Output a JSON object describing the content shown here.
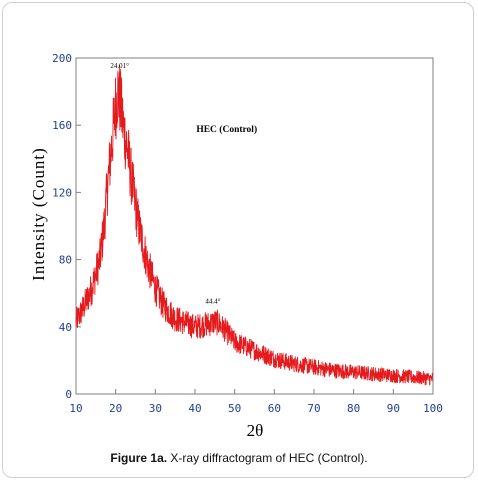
{
  "caption": {
    "label": "Figure 1a.",
    "text": " X-ray diffractogram of HEC (Control)."
  },
  "chart_data": {
    "type": "line",
    "xlabel": "2θ",
    "ylabel": "Intensity (Count)",
    "xlim": [
      10,
      100
    ],
    "ylim": [
      0,
      200
    ],
    "xticks": [
      10,
      20,
      30,
      40,
      50,
      60,
      70,
      80,
      90,
      100
    ],
    "yticks": [
      0,
      40,
      80,
      120,
      160,
      200
    ],
    "grid": false,
    "line_color": "#e41a1c",
    "annotations": [
      {
        "text": "24.01°",
        "x": 21,
        "y": 194
      },
      {
        "text": "44.4°",
        "x": 44.5,
        "y": 54
      },
      {
        "text": "HEC (Control)",
        "x": 48,
        "y": 156
      }
    ],
    "series": [
      {
        "x": [
          10,
          12,
          14,
          16,
          17,
          18,
          19,
          20,
          20.5,
          21,
          21.5,
          22,
          23,
          24,
          25,
          26,
          28,
          30,
          32,
          35,
          38,
          40,
          42,
          44,
          45,
          46,
          48,
          50,
          55,
          60,
          65,
          70,
          75,
          80,
          85,
          90,
          95,
          100
        ],
        "y": [
          43,
          52,
          63,
          80,
          98,
          125,
          148,
          172,
          180,
          176,
          168,
          158,
          145,
          128,
          112,
          98,
          78,
          63,
          53,
          45,
          42,
          40,
          41,
          42,
          43,
          42,
          37,
          31,
          26,
          21,
          18,
          16,
          14,
          13,
          12,
          11,
          10,
          9
        ]
      }
    ]
  }
}
